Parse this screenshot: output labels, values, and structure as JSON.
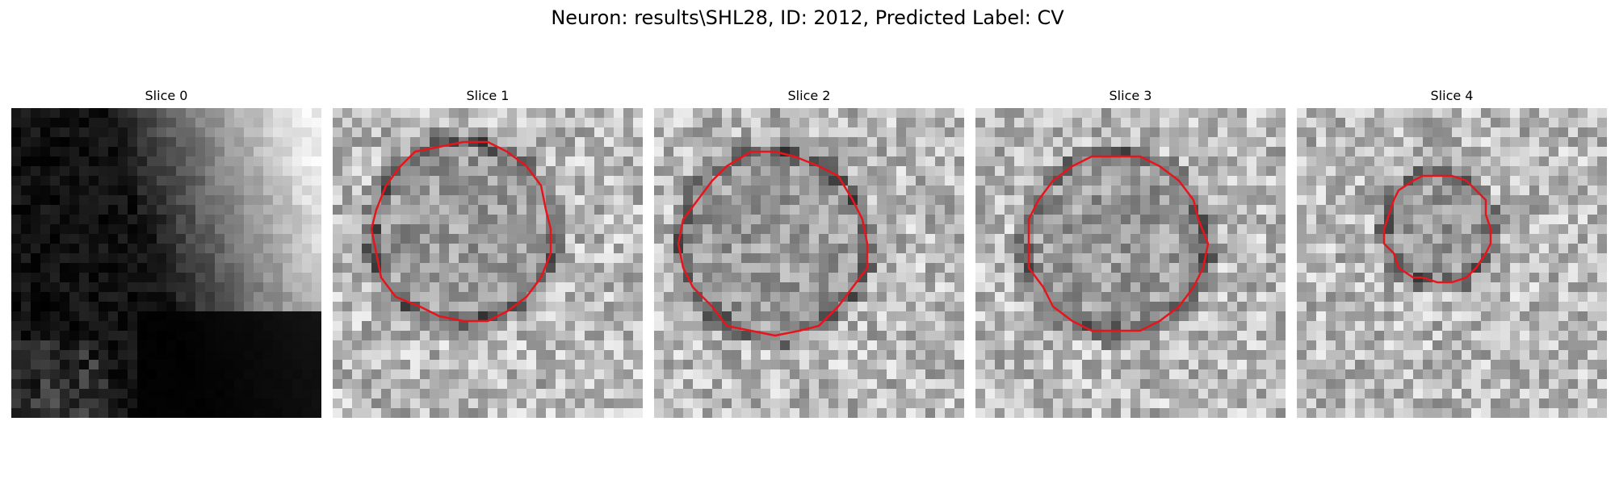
{
  "figure": {
    "title": "Neuron: results\\SHL28, ID: 2012, Predicted Label: CV"
  },
  "panels": [
    {
      "title": "Slice 0",
      "kind": "dark-gradient",
      "contour": false
    },
    {
      "title": "Slice 1",
      "kind": "noise-ring",
      "contour": true
    },
    {
      "title": "Slice 2",
      "kind": "noise-ring",
      "contour": true
    },
    {
      "title": "Slice 3",
      "kind": "noise-ring",
      "contour": true
    },
    {
      "title": "Slice 4",
      "kind": "noise-ring",
      "contour": true
    }
  ],
  "style": {
    "contour_color": "#e8141c",
    "colormap": "grayscale"
  }
}
